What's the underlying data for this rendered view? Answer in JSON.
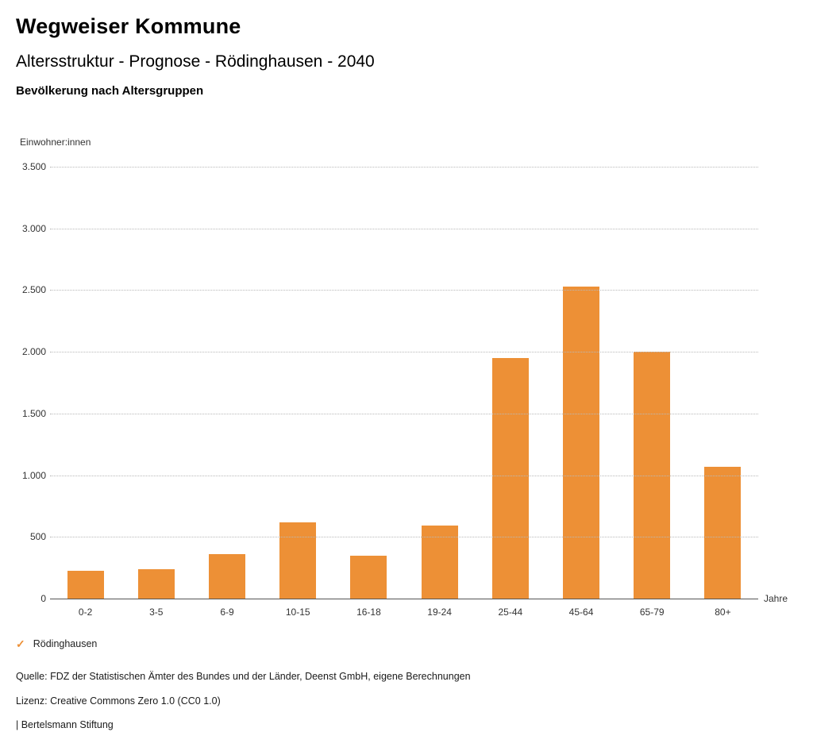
{
  "header": {
    "title": "Wegweiser Kommune",
    "subtitle": "Altersstruktur - Prognose - Rödinghausen - 2040",
    "chart_title": "Bevölkerung nach Altersgruppen"
  },
  "chart_data": {
    "type": "bar",
    "title": "Bevölkerung nach Altersgruppen",
    "xlabel": "Jahre",
    "ylabel": "Einwohner:innen",
    "categories": [
      "0-2",
      "3-5",
      "6-9",
      "10-15",
      "16-18",
      "19-24",
      "25-44",
      "45-64",
      "65-79",
      "80+"
    ],
    "series": [
      {
        "name": "Rödinghausen",
        "values": [
          225,
          240,
          360,
          620,
          350,
          590,
          1950,
          2530,
          2000,
          1065
        ]
      }
    ],
    "ylim": [
      0,
      3500
    ],
    "yticks": [
      {
        "value": 0,
        "label": "0"
      },
      {
        "value": 500,
        "label": "500"
      },
      {
        "value": 1000,
        "label": "1.000"
      },
      {
        "value": 1500,
        "label": "1.500"
      },
      {
        "value": 2000,
        "label": "2.000"
      },
      {
        "value": 2500,
        "label": "2.500"
      },
      {
        "value": 3000,
        "label": "3.000"
      },
      {
        "value": 3500,
        "label": "3.500"
      }
    ],
    "grid": true,
    "legend_position": "bottom-left",
    "bar_color": "#ED9036"
  },
  "legend": {
    "check_symbol": "✓",
    "label": "Rödinghausen",
    "color": "#ED9036"
  },
  "footer": {
    "source": "Quelle: FDZ der Statistischen Ämter des Bundes und der Länder, Deenst GmbH, eigene Berechnungen",
    "license": "Lizenz: Creative Commons Zero 1.0 (CC0 1.0)",
    "attribution": "| Bertelsmann Stiftung"
  }
}
